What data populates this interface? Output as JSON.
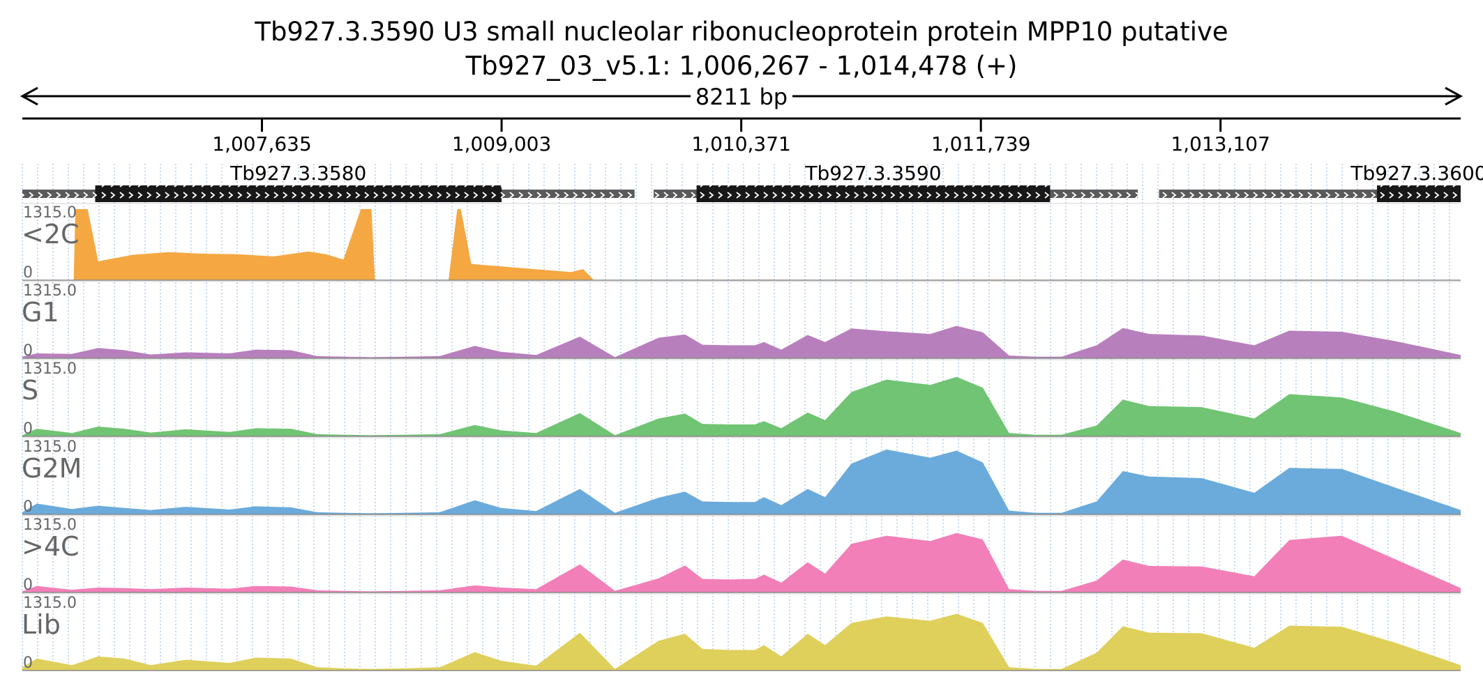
{
  "header": {
    "title": "Tb927.3.3590  U3 small nucleolar ribonucleoprotein protein MPP10  putative",
    "subtitle": "Tb927_03_v5.1: 1,006,267 - 1,014,478 (+)",
    "span_label": "8211 bp"
  },
  "chart_data": {
    "type": "area",
    "title": "Tb927.3.3590  U3 small nucleolar ribonucleoprotein protein MPP10  putative",
    "xlabel": "",
    "ylabel": "",
    "xlim": [
      1006267,
      1014478
    ],
    "ticks": [
      {
        "value": 1007635,
        "label": "1,007,635"
      },
      {
        "value": 1009003,
        "label": "1,009,003"
      },
      {
        "value": 1010371,
        "label": "1,010,371"
      },
      {
        "value": 1011739,
        "label": "1,011,739"
      },
      {
        "value": 1013107,
        "label": "1,013,107"
      }
    ],
    "genes": [
      {
        "name": "Tb927.3.3580",
        "start": 1006267,
        "end": 1009762,
        "cds_start": 1006683,
        "cds_end": 1009003
      },
      {
        "name": "Tb927.3.3590",
        "start": 1009871,
        "end": 1012635,
        "cds_start": 1010116,
        "cds_end": 1012134
      },
      {
        "name": "Tb927.3.3600",
        "start": 1012756,
        "end": 1014478,
        "cds_start": 1014000,
        "cds_end": 1014478
      }
    ],
    "tracks_ymax_label": "1315.0",
    "tracks_ymin_label": "0",
    "series": [
      {
        "name": "<2C",
        "color": "#f5a742",
        "x": [
          1006267,
          1006560,
          1006570,
          1006640,
          1006700,
          1006900,
          1007100,
          1007300,
          1007500,
          1007700,
          1007900,
          1008000,
          1008100,
          1008200,
          1008260,
          1008280,
          1008310,
          1008320,
          1008700,
          1008750,
          1008770,
          1008830,
          1009400,
          1009460,
          1009470,
          1009530,
          1009540,
          1010100,
          1010500,
          1011000,
          1011700,
          1012300,
          1012800,
          1013500,
          1014478
        ],
        "values": [
          0,
          0,
          1315,
          1315,
          350,
          470,
          520,
          490,
          480,
          440,
          530,
          480,
          380,
          1315,
          1315,
          0,
          0,
          0,
          0,
          1315,
          1315,
          300,
          150,
          200,
          200,
          0,
          0,
          8,
          10,
          5,
          10,
          8,
          5,
          3,
          0
        ]
      },
      {
        "name": "G1",
        "color": "#b87fbd",
        "x": [
          1006267,
          1006350,
          1006550,
          1006700,
          1006850,
          1007000,
          1007200,
          1007450,
          1007600,
          1007800,
          1007950,
          1008100,
          1008250,
          1008450,
          1008650,
          1008850,
          1009000,
          1009200,
          1009450,
          1009650,
          1009900,
          1010050,
          1010150,
          1010300,
          1010450,
          1010500,
          1010600,
          1010750,
          1010850,
          1011000,
          1011200,
          1011450,
          1011600,
          1011750,
          1011900,
          1012050,
          1012200,
          1012400,
          1012550,
          1012700,
          1013000,
          1013300,
          1013500,
          1013800,
          1014100,
          1014478
        ],
        "values": [
          30,
          90,
          80,
          190,
          150,
          70,
          110,
          90,
          160,
          150,
          40,
          30,
          20,
          30,
          40,
          230,
          120,
          60,
          400,
          20,
          380,
          440,
          250,
          240,
          240,
          300,
          160,
          430,
          300,
          550,
          500,
          450,
          600,
          480,
          50,
          30,
          30,
          240,
          560,
          450,
          420,
          240,
          510,
          490,
          320,
          60
        ]
      },
      {
        "name": "S",
        "color": "#70c473",
        "x": [
          1006267,
          1006350,
          1006550,
          1006700,
          1006850,
          1007000,
          1007200,
          1007450,
          1007600,
          1007800,
          1007950,
          1008100,
          1008250,
          1008450,
          1008650,
          1008850,
          1009000,
          1009200,
          1009450,
          1009650,
          1009900,
          1010050,
          1010150,
          1010300,
          1010450,
          1010500,
          1010600,
          1010750,
          1010850,
          1011000,
          1011200,
          1011450,
          1011600,
          1011750,
          1011900,
          1012050,
          1012200,
          1012400,
          1012550,
          1012700,
          1013000,
          1013300,
          1013500,
          1013800,
          1014100,
          1014478
        ],
        "values": [
          20,
          140,
          60,
          180,
          140,
          70,
          130,
          80,
          150,
          140,
          40,
          30,
          20,
          30,
          40,
          210,
          110,
          60,
          430,
          20,
          330,
          420,
          230,
          220,
          220,
          280,
          150,
          440,
          300,
          820,
          1050,
          950,
          1100,
          900,
          60,
          30,
          30,
          200,
          680,
          560,
          540,
          330,
          780,
          720,
          460,
          60
        ]
      },
      {
        "name": "G2M",
        "color": "#6aabdc",
        "x": [
          1006267,
          1006350,
          1006550,
          1006700,
          1006850,
          1007000,
          1007200,
          1007450,
          1007600,
          1007800,
          1007950,
          1008100,
          1008250,
          1008450,
          1008650,
          1008850,
          1009000,
          1009200,
          1009450,
          1009650,
          1009900,
          1010050,
          1010150,
          1010300,
          1010450,
          1010500,
          1010600,
          1010750,
          1010850,
          1011000,
          1011200,
          1011450,
          1011600,
          1011750,
          1011900,
          1012050,
          1012200,
          1012400,
          1012550,
          1012700,
          1013000,
          1013300,
          1013500,
          1013800,
          1014100,
          1014478
        ],
        "values": [
          40,
          200,
          100,
          160,
          120,
          80,
          140,
          90,
          150,
          130,
          40,
          30,
          20,
          30,
          40,
          260,
          120,
          60,
          470,
          30,
          310,
          420,
          240,
          230,
          230,
          320,
          170,
          470,
          320,
          940,
          1200,
          1050,
          1180,
          960,
          70,
          30,
          30,
          240,
          800,
          700,
          670,
          400,
          860,
          840,
          500,
          80
        ]
      },
      {
        "name": ">4C",
        "color": "#f27fb8",
        "x": [
          1006267,
          1006350,
          1006550,
          1006700,
          1006850,
          1007000,
          1007200,
          1007450,
          1007600,
          1007800,
          1007950,
          1008100,
          1008250,
          1008450,
          1008650,
          1008850,
          1009000,
          1009200,
          1009450,
          1009650,
          1009900,
          1010050,
          1010150,
          1010300,
          1010450,
          1010500,
          1010600,
          1010750,
          1010850,
          1011000,
          1011200,
          1011450,
          1011600,
          1011750,
          1011900,
          1012050,
          1012200,
          1012400,
          1012550,
          1012700,
          1013000,
          1013300,
          1013500,
          1013800,
          1014100,
          1014478
        ],
        "values": [
          20,
          120,
          50,
          90,
          80,
          60,
          90,
          70,
          120,
          110,
          40,
          30,
          20,
          30,
          40,
          130,
          90,
          60,
          520,
          30,
          260,
          500,
          250,
          240,
          250,
          330,
          180,
          560,
          350,
          900,
          1050,
          950,
          1100,
          980,
          60,
          30,
          30,
          220,
          610,
          490,
          480,
          300,
          970,
          1050,
          620,
          80
        ]
      },
      {
        "name": "Lib",
        "color": "#dfd05c",
        "x": [
          1006267,
          1006350,
          1006550,
          1006700,
          1006850,
          1007000,
          1007200,
          1007450,
          1007600,
          1007800,
          1007950,
          1008100,
          1008250,
          1008450,
          1008650,
          1008850,
          1009000,
          1009200,
          1009450,
          1009650,
          1009900,
          1010050,
          1010150,
          1010300,
          1010450,
          1010500,
          1010600,
          1010750,
          1010850,
          1011000,
          1011200,
          1011450,
          1011600,
          1011750,
          1011900,
          1012050,
          1012200,
          1012400,
          1012550,
          1012700,
          1013000,
          1013300,
          1013500,
          1013800,
          1014100,
          1014478
        ],
        "values": [
          60,
          220,
          100,
          260,
          220,
          100,
          200,
          140,
          240,
          220,
          60,
          40,
          30,
          40,
          60,
          340,
          180,
          90,
          700,
          30,
          550,
          680,
          400,
          380,
          380,
          470,
          260,
          680,
          470,
          880,
          1000,
          920,
          1050,
          880,
          60,
          30,
          30,
          330,
          820,
          700,
          690,
          420,
          830,
          810,
          520,
          100
        ]
      }
    ],
    "grid": true
  }
}
